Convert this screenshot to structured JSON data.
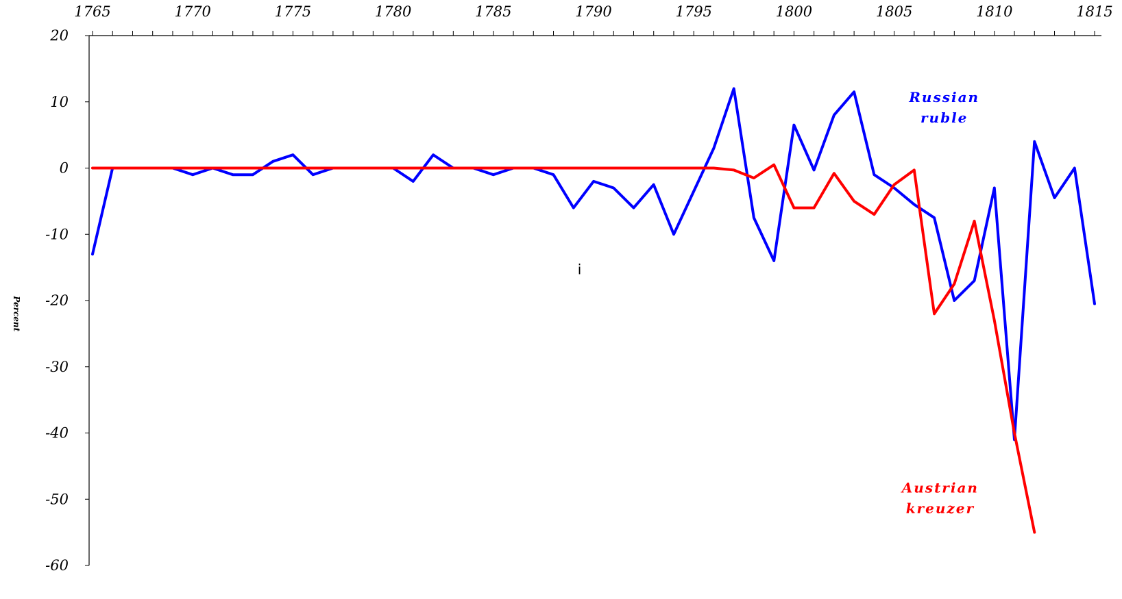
{
  "chart_data": {
    "type": "line",
    "title": "",
    "xlabel": "",
    "ylabel": "Percent",
    "xlim": [
      1765,
      1815
    ],
    "ylim": [
      -60,
      20
    ],
    "x_ticks": [
      1765,
      1770,
      1775,
      1780,
      1785,
      1790,
      1795,
      1800,
      1805,
      1810,
      1815
    ],
    "y_ticks": [
      20,
      10,
      0,
      -10,
      -20,
      -30,
      -40,
      -50,
      -60
    ],
    "x_axis_position": "top",
    "grid": false,
    "legend": "none",
    "series": [
      {
        "name": "Russian ruble",
        "color": "#0000ff",
        "x": [
          1765,
          1766,
          1767,
          1768,
          1769,
          1770,
          1771,
          1772,
          1773,
          1774,
          1775,
          1776,
          1777,
          1778,
          1779,
          1780,
          1781,
          1782,
          1783,
          1784,
          1785,
          1786,
          1787,
          1788,
          1789,
          1790,
          1791,
          1792,
          1793,
          1794,
          1795,
          1796,
          1797,
          1798,
          1799,
          1800,
          1801,
          1802,
          1803,
          1804,
          1805,
          1806,
          1807,
          1808,
          1809,
          1810,
          1811,
          1812,
          1813,
          1814,
          1815
        ],
        "values": [
          -13,
          0,
          0,
          0,
          0,
          -1,
          0,
          -1,
          -1,
          1,
          2,
          -1,
          0,
          0,
          0,
          0,
          -2,
          2,
          0,
          0,
          -1,
          0,
          0,
          -1,
          -6,
          -2,
          -3,
          -6,
          -2.5,
          -10,
          -3.5,
          3,
          12,
          -7.5,
          -14,
          6.5,
          -0.3,
          8,
          11.5,
          -1,
          -3,
          -5.5,
          -7.5,
          -20,
          -17,
          -3,
          -41,
          4,
          -4.5,
          0,
          -20.5
        ]
      },
      {
        "name": "Austrian kreuzer",
        "color": "#ff0000",
        "x": [
          1765,
          1766,
          1767,
          1768,
          1769,
          1770,
          1771,
          1772,
          1773,
          1774,
          1775,
          1776,
          1777,
          1778,
          1779,
          1780,
          1781,
          1782,
          1783,
          1784,
          1785,
          1786,
          1787,
          1788,
          1789,
          1790,
          1791,
          1792,
          1793,
          1794,
          1795,
          1796,
          1797,
          1798,
          1799,
          1800,
          1801,
          1802,
          1803,
          1804,
          1805,
          1806,
          1807,
          1808,
          1809,
          1810,
          1811,
          1812
        ],
        "values": [
          0,
          0,
          0,
          0,
          0,
          0,
          0,
          0,
          0,
          0,
          0,
          0,
          0,
          0,
          0,
          0,
          0,
          0,
          0,
          0,
          0,
          0,
          0,
          0,
          0,
          0,
          0,
          0,
          0,
          0,
          0,
          0,
          -0.3,
          -1.5,
          0.5,
          -6,
          -6,
          -0.8,
          -5,
          -7,
          -2.5,
          -0.3,
          -22,
          -17.5,
          -8,
          -23,
          -40,
          -55
        ]
      }
    ],
    "annotations": [
      {
        "text_lines": [
          "Russian",
          "ruble"
        ],
        "color": "#0000ff",
        "at": {
          "x": 1807.5,
          "y": 10
        }
      },
      {
        "text_lines": [
          "Austrian",
          "kreuzer"
        ],
        "color": "#ff0000",
        "at": {
          "x": 1807.3,
          "y": -49
        }
      },
      {
        "text_lines": [
          "i"
        ],
        "color": "#000000",
        "at": {
          "x": 1789.3,
          "y": -16
        }
      }
    ]
  }
}
